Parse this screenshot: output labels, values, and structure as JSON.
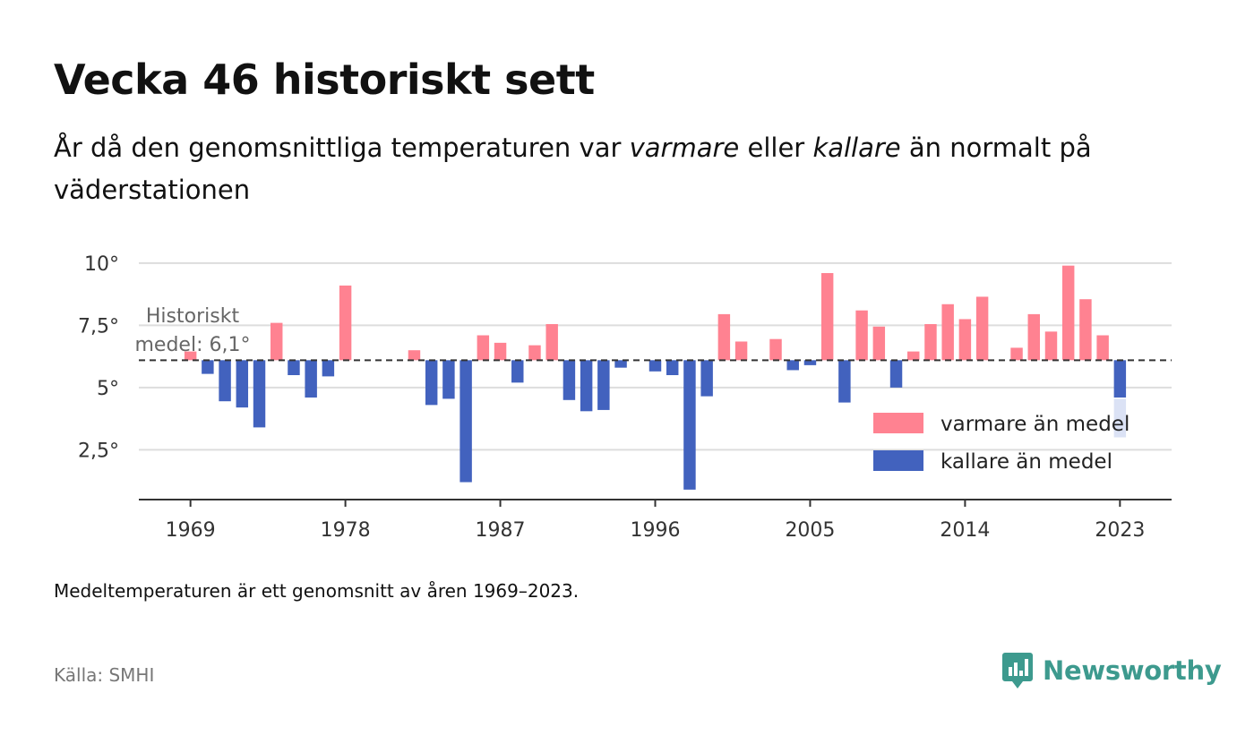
{
  "title": "Vecka 46 historiskt sett",
  "subtitle": {
    "part1": "År då den genomsnittliga temperaturen var ",
    "warm": "varmare",
    "part2": " eller ",
    "cold": "kallare",
    "part3": " än normalt på väderstationen"
  },
  "note": "Medeltemperaturen är ett genomsnitt av åren 1969–2023.",
  "source": "Källa: SMHI",
  "logo": {
    "text": "Newsworthy",
    "icon": "newsworthy-chart-bubble-icon"
  },
  "colors": {
    "warm": "#ff8291",
    "cold": "#4262be",
    "highlight": "#dbe2f5",
    "grid": "#dddddd",
    "axis": "#333333",
    "mean_line": "#333333"
  },
  "chart_data": {
    "type": "bar",
    "baseline": 6.1,
    "baseline_label": [
      "Historiskt",
      "medel: 6,1°"
    ],
    "ylim": [
      0.5,
      10.5
    ],
    "yticks": [
      {
        "value": 10,
        "label": "10°"
      },
      {
        "value": 7.5,
        "label": "7,5°"
      },
      {
        "value": 5,
        "label": "5°"
      },
      {
        "value": 2.5,
        "label": "2,5°"
      }
    ],
    "xticks": [
      {
        "value": 1969,
        "label": "1969"
      },
      {
        "value": 1978,
        "label": "1978"
      },
      {
        "value": 1987,
        "label": "1987"
      },
      {
        "value": 1996,
        "label": "1996"
      },
      {
        "value": 2005,
        "label": "2005"
      },
      {
        "value": 2014,
        "label": "2014"
      },
      {
        "value": 2023,
        "label": "2023"
      }
    ],
    "xlim": [
      1966,
      2026
    ],
    "highlight_year": 2023,
    "highlight_range": [
      3.0,
      4.55
    ],
    "legend": [
      {
        "label": "varmare än medel",
        "series": "warm"
      },
      {
        "label": "kallare än medel",
        "series": "cold"
      }
    ],
    "years": [
      1969,
      1970,
      1971,
      1972,
      1973,
      1974,
      1975,
      1976,
      1977,
      1978,
      1979,
      1980,
      1981,
      1982,
      1983,
      1984,
      1985,
      1986,
      1987,
      1988,
      1989,
      1990,
      1991,
      1992,
      1993,
      1994,
      1995,
      1996,
      1997,
      1998,
      1999,
      2000,
      2001,
      2002,
      2003,
      2004,
      2005,
      2006,
      2007,
      2008,
      2009,
      2010,
      2011,
      2012,
      2013,
      2014,
      2015,
      2016,
      2017,
      2018,
      2019,
      2020,
      2021,
      2022,
      2023
    ],
    "values": [
      6.45,
      5.55,
      4.45,
      4.2,
      3.4,
      7.6,
      5.5,
      4.6,
      5.45,
      9.1,
      null,
      null,
      null,
      6.5,
      4.3,
      4.55,
      1.2,
      7.1,
      6.8,
      5.2,
      6.7,
      7.55,
      4.5,
      4.05,
      4.1,
      5.8,
      null,
      5.65,
      5.5,
      0.9,
      4.65,
      7.95,
      6.85,
      null,
      6.95,
      5.7,
      5.9,
      9.6,
      4.4,
      8.1,
      7.45,
      5.0,
      6.45,
      7.55,
      8.35,
      7.75,
      8.65,
      null,
      6.6,
      7.95,
      7.25,
      9.9,
      8.55,
      7.1,
      4.6
    ]
  }
}
